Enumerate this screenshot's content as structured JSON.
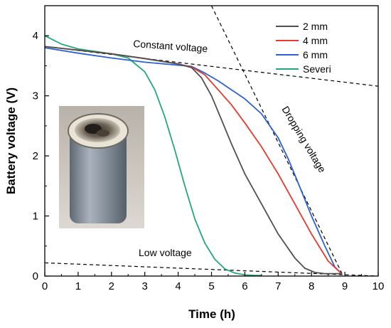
{
  "chart_data": {
    "type": "line",
    "title": "",
    "xlabel": "Time (h)",
    "ylabel": "Battery voltage (V)",
    "xlim": [
      0,
      10
    ],
    "ylim": [
      0,
      4.5
    ],
    "xticks": [
      0,
      1,
      2,
      3,
      4,
      5,
      6,
      7,
      8,
      9,
      10
    ],
    "yticks": [
      0,
      1,
      2,
      3,
      4
    ],
    "grid": false,
    "legend_position": "top-right",
    "series": [
      {
        "name": "2 mm",
        "color": "#505050",
        "x": [
          0,
          1,
          2,
          3,
          4,
          4.4,
          4.7,
          5.0,
          5.3,
          5.6,
          6.0,
          6.5,
          7.0,
          7.5,
          7.8,
          8.1,
          8.4,
          8.7,
          8.9
        ],
        "y": [
          3.82,
          3.76,
          3.7,
          3.62,
          3.53,
          3.47,
          3.3,
          3.0,
          2.6,
          2.2,
          1.7,
          1.2,
          0.7,
          0.3,
          0.13,
          0.06,
          0.04,
          0.04,
          0.04
        ]
      },
      {
        "name": "4 mm",
        "color": "#e8392c",
        "x": [
          0,
          1,
          2,
          3,
          4,
          4.4,
          4.8,
          5.2,
          5.6,
          6.0,
          6.5,
          7.0,
          7.5,
          8.0,
          8.5,
          8.9
        ],
        "y": [
          3.82,
          3.76,
          3.7,
          3.62,
          3.53,
          3.48,
          3.35,
          3.1,
          2.85,
          2.55,
          2.15,
          1.7,
          1.2,
          0.7,
          0.25,
          0.04
        ]
      },
      {
        "name": "6 mm",
        "color": "#2a62d6",
        "x": [
          0,
          1,
          2,
          3,
          4,
          4.4,
          4.8,
          5.2,
          5.6,
          6.0,
          6.5,
          7.0,
          7.3,
          7.6,
          8.0,
          8.4,
          8.7,
          8.9
        ],
        "y": [
          3.8,
          3.71,
          3.63,
          3.56,
          3.51,
          3.49,
          3.38,
          3.25,
          3.1,
          2.95,
          2.7,
          2.3,
          1.95,
          1.55,
          1.0,
          0.5,
          0.15,
          0.04
        ]
      },
      {
        "name": "Severi",
        "color": "#23a87a",
        "x": [
          0,
          0.5,
          1,
          1.5,
          2,
          2.5,
          3.0,
          3.3,
          3.6,
          3.9,
          4.2,
          4.5,
          4.8,
          5.1,
          5.4,
          5.7,
          6.0,
          6.3,
          6.5
        ],
        "y": [
          4.0,
          3.86,
          3.78,
          3.74,
          3.7,
          3.63,
          3.4,
          3.1,
          2.65,
          2.1,
          1.5,
          0.95,
          0.55,
          0.28,
          0.12,
          0.05,
          0.02,
          0.01,
          0.01
        ]
      }
    ],
    "reference_lines": [
      {
        "label": "Constant voltage",
        "x": [
          0,
          10
        ],
        "y": [
          3.82,
          3.16
        ]
      },
      {
        "label": "Dropping voltage",
        "x": [
          5.0,
          8.95
        ],
        "y": [
          4.5,
          0.0
        ]
      },
      {
        "label": "Low voltage",
        "x": [
          0,
          10
        ],
        "y": [
          0.22,
          0.0
        ]
      }
    ],
    "inset_image": "photo of a cylindrical battery cell with a damaged top"
  }
}
